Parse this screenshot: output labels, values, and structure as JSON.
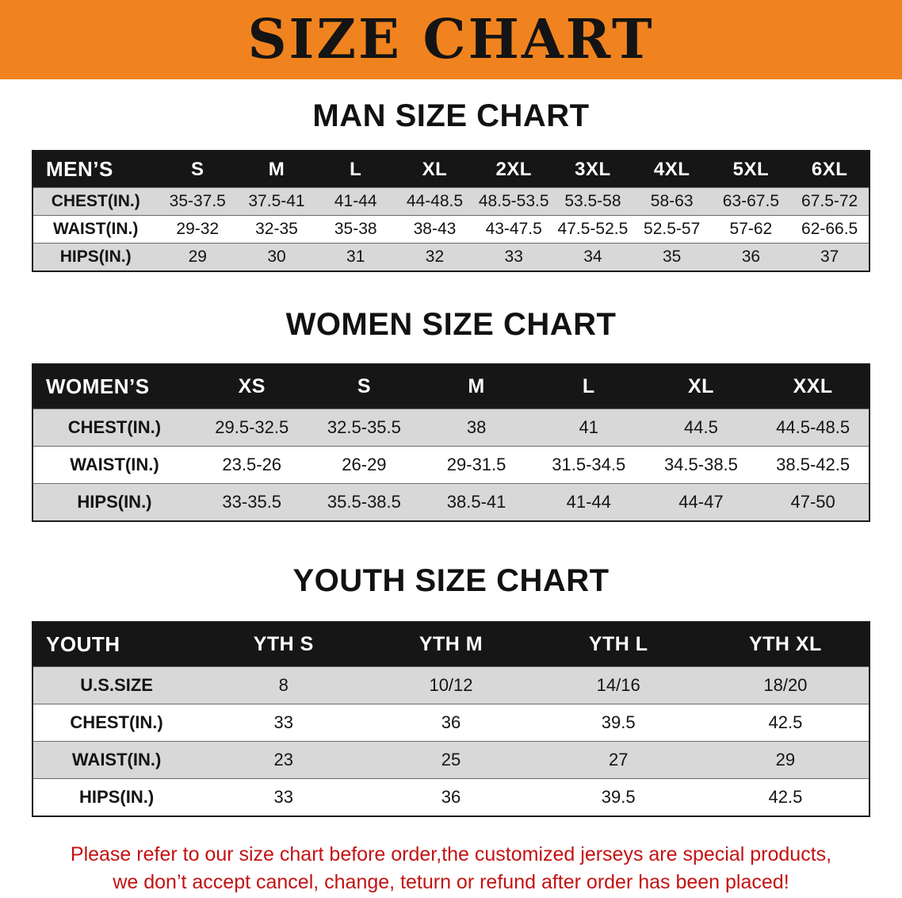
{
  "banner": {
    "title": "SIZE CHART"
  },
  "colors": {
    "banner-bg": "#F0831F",
    "header-bg": "#161616",
    "stripe": "#D8D8D8",
    "disclaimer": "#C41212"
  },
  "sections": [
    {
      "id": "men",
      "heading": "MAN SIZE CHART",
      "table": {
        "header": [
          "MEN’S",
          "S",
          "M",
          "L",
          "XL",
          "2XL",
          "3XL",
          "4XL",
          "5XL",
          "6XL"
        ],
        "rows": [
          [
            "CHEST(IN.)",
            "35-37.5",
            "37.5-41",
            "41-44",
            "44-48.5",
            "48.5-53.5",
            "53.5-58",
            "58-63",
            "63-67.5",
            "67.5-72"
          ],
          [
            "WAIST(IN.)",
            "29-32",
            "32-35",
            "35-38",
            "38-43",
            "43-47.5",
            "47.5-52.5",
            "52.5-57",
            "57-62",
            "62-66.5"
          ],
          [
            "HIPS(IN.)",
            "29",
            "30",
            "31",
            "32",
            "33",
            "34",
            "35",
            "36",
            "37"
          ]
        ]
      }
    },
    {
      "id": "women",
      "heading": "WOMEN SIZE CHART",
      "table": {
        "header": [
          "WOMEN’S",
          "XS",
          "S",
          "M",
          "L",
          "XL",
          "XXL"
        ],
        "rows": [
          [
            "CHEST(IN.)",
            "29.5-32.5",
            "32.5-35.5",
            "38",
            "41",
            "44.5",
            "44.5-48.5"
          ],
          [
            "WAIST(IN.)",
            "23.5-26",
            "26-29",
            "29-31.5",
            "31.5-34.5",
            "34.5-38.5",
            "38.5-42.5"
          ],
          [
            "HIPS(IN.)",
            "33-35.5",
            "35.5-38.5",
            "38.5-41",
            "41-44",
            "44-47",
            "47-50"
          ]
        ]
      }
    },
    {
      "id": "youth",
      "heading": "YOUTH SIZE CHART",
      "table": {
        "header": [
          "YOUTH",
          "YTH S",
          "YTH M",
          "YTH L",
          "YTH XL"
        ],
        "rows": [
          [
            "U.S.SIZE",
            "8",
            "10/12",
            "14/16",
            "18/20"
          ],
          [
            "CHEST(IN.)",
            "33",
            "36",
            "39.5",
            "42.5"
          ],
          [
            "WAIST(IN.)",
            "23",
            "25",
            "27",
            "29"
          ],
          [
            "HIPS(IN.)",
            "33",
            "36",
            "39.5",
            "42.5"
          ]
        ]
      }
    }
  ],
  "disclaimer": {
    "line1": "Please refer to our size chart before order,the customized jerseys are special products,",
    "line2": "we don’t accept cancel, change, teturn or refund after order has been placed!"
  }
}
